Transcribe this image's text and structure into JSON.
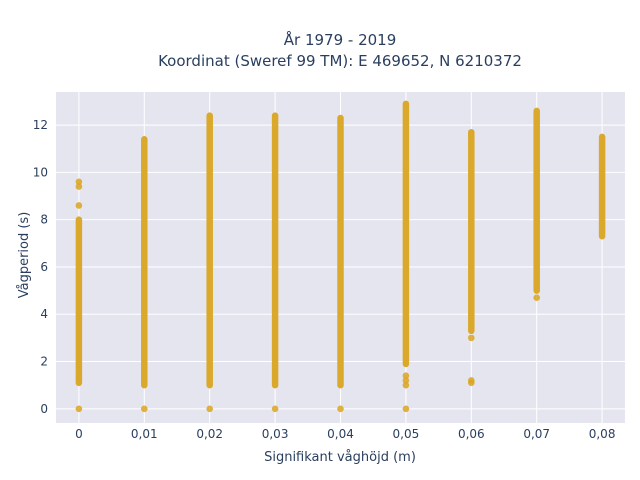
{
  "chart_data": {
    "type": "scatter",
    "title": "År 1979 - 2019",
    "subtitle": "Koordinat (Sweref 99 TM): E 469652, N 6210372",
    "xlabel": "Signifikant våghöjd (m)",
    "ylabel": "Vågperiod (s)",
    "xlim": [
      -0.0035,
      0.0835
    ],
    "ylim": [
      -0.6,
      13.4
    ],
    "x_ticks": [
      0,
      0.01,
      0.02,
      0.03,
      0.04,
      0.05,
      0.06,
      0.07,
      0.08
    ],
    "x_tick_labels": [
      "0",
      "0,01",
      "0,02",
      "0,03",
      "0,04",
      "0,05",
      "0,06",
      "0,07",
      "0,08"
    ],
    "y_ticks": [
      0,
      2,
      4,
      6,
      8,
      10,
      12
    ],
    "y_tick_labels": [
      "0",
      "2",
      "4",
      "6",
      "8",
      "10",
      "12"
    ],
    "grid": true,
    "colors": {
      "marker": "#daa520",
      "plot_bg": "#e5e5f0",
      "grid": "#ffffff",
      "text": "#2a3f5f"
    },
    "series": [
      {
        "columns": [
          {
            "x": 0,
            "y_min": 1.1,
            "y_max": 8.0,
            "extra_y": [
              0,
              8.6,
              9.4,
              9.6
            ]
          },
          {
            "x": 0.01,
            "y_min": 1.0,
            "y_max": 11.4,
            "extra_y": [
              0
            ]
          },
          {
            "x": 0.02,
            "y_min": 1.0,
            "y_max": 12.4,
            "extra_y": [
              0
            ]
          },
          {
            "x": 0.03,
            "y_min": 1.0,
            "y_max": 12.4,
            "extra_y": [
              0
            ]
          },
          {
            "x": 0.04,
            "y_min": 1.0,
            "y_max": 12.3,
            "extra_y": [
              0
            ]
          },
          {
            "x": 0.05,
            "y_min": 1.9,
            "y_max": 12.9,
            "extra_y": [
              0,
              1.0,
              1.2,
              1.4
            ]
          },
          {
            "x": 0.06,
            "y_min": 3.3,
            "y_max": 11.7,
            "extra_y": [
              1.1,
              1.2,
              3.0
            ]
          },
          {
            "x": 0.07,
            "y_min": 5.0,
            "y_max": 12.6,
            "extra_y": [
              4.7
            ]
          },
          {
            "x": 0.08,
            "y_min": 7.3,
            "y_max": 11.5,
            "extra_y": []
          }
        ]
      }
    ]
  }
}
